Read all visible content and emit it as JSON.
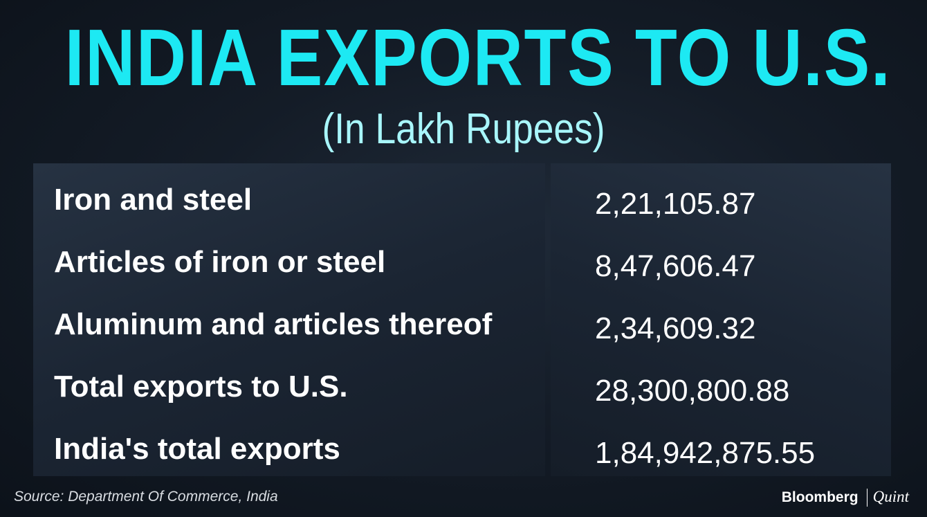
{
  "chart_data": {
    "type": "table",
    "title": "INDIA EXPORTS TO U.S.",
    "subtitle": "(In Lakh Rupees)",
    "rows": [
      {
        "category": "Iron and steel",
        "value": "2,21,105.87"
      },
      {
        "category": "Articles of iron or steel",
        "value": "8,47,606.47"
      },
      {
        "category": "Aluminum and articles thereof",
        "value": "2,34,609.32"
      },
      {
        "category": "Total exports to U.S.",
        "value": "28,300,800.88"
      },
      {
        "category": "India's total exports",
        "value": "1,84,942,875.55"
      }
    ],
    "source": "Source: Department Of Commerce, India"
  },
  "branding": {
    "bloomberg": "Bloomberg",
    "quint": "Quint"
  },
  "colors": {
    "title": "#1de9f3",
    "subtitle": "#a8f6fb",
    "background": "#141c27",
    "text": "#ffffff"
  }
}
